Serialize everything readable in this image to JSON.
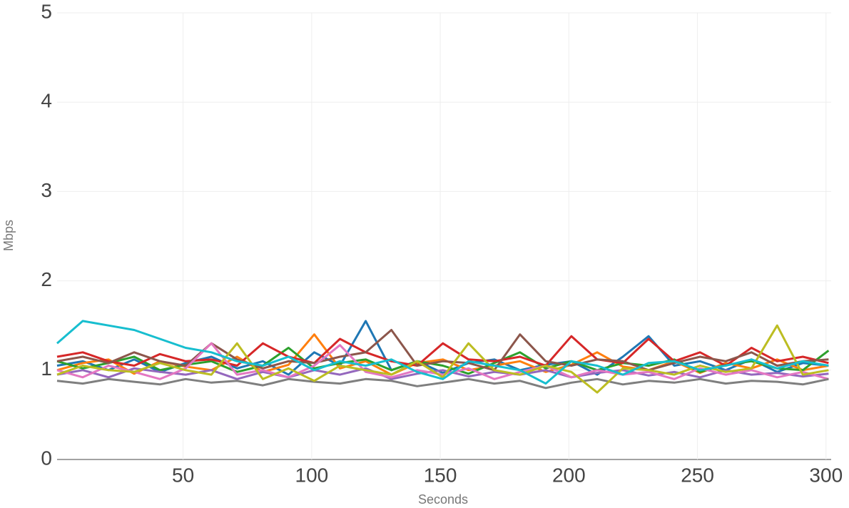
{
  "chart_data": {
    "type": "line",
    "x_label": "Seconds",
    "y_label": "Mbps",
    "x": [
      1,
      11,
      21,
      31,
      41,
      51,
      61,
      71,
      81,
      91,
      101,
      111,
      121,
      131,
      141,
      151,
      161,
      171,
      181,
      191,
      201,
      211,
      221,
      231,
      241,
      251,
      261,
      271,
      281,
      291,
      301
    ],
    "series": [
      {
        "color": "#1f77b4",
        "values": [
          1.05,
          1.1,
          1.0,
          1.12,
          0.98,
          1.08,
          1.15,
          1.02,
          1.1,
          0.95,
          1.2,
          1.05,
          1.55,
          1.0,
          1.1,
          0.97,
          1.08,
          1.12,
          1.0,
          1.06,
          1.1,
          0.95,
          1.15,
          1.38,
          1.05,
          1.1,
          1.0,
          1.12,
          0.98,
          1.08,
          1.05
        ]
      },
      {
        "color": "#ff7f0e",
        "values": [
          1.0,
          1.08,
          1.12,
          0.96,
          1.1,
          1.04,
          1.0,
          1.15,
          0.98,
          1.06,
          1.4,
          1.02,
          1.1,
          0.95,
          1.08,
          1.12,
          1.0,
          1.05,
          1.1,
          0.98,
          1.06,
          1.2,
          1.04,
          1.0,
          1.1,
          0.97,
          1.08,
          1.02,
          1.12,
          1.0,
          1.05
        ]
      },
      {
        "color": "#2ca02c",
        "values": [
          1.1,
          1.02,
          1.08,
          1.15,
          1.0,
          1.06,
          1.1,
          0.98,
          1.05,
          1.25,
          1.02,
          1.08,
          1.12,
          1.0,
          1.1,
          1.05,
          0.96,
          1.08,
          1.2,
          1.02,
          1.1,
          1.0,
          1.08,
          1.05,
          1.12,
          0.98,
          1.06,
          1.1,
          1.02,
          1.0,
          1.22
        ]
      },
      {
        "color": "#d62728",
        "values": [
          1.15,
          1.2,
          1.1,
          1.05,
          1.18,
          1.1,
          1.12,
          1.05,
          1.3,
          1.15,
          1.08,
          1.35,
          1.2,
          1.1,
          1.05,
          1.3,
          1.12,
          1.1,
          1.15,
          1.05,
          1.38,
          1.12,
          1.08,
          1.35,
          1.1,
          1.2,
          1.05,
          1.25,
          1.1,
          1.15,
          1.08
        ]
      },
      {
        "color": "#9467bd",
        "values": [
          0.95,
          1.0,
          0.92,
          1.02,
          0.98,
          0.95,
          1.0,
          0.9,
          0.98,
          0.92,
          1.0,
          0.95,
          1.02,
          0.9,
          0.96,
          1.0,
          0.93,
          0.98,
          0.95,
          1.0,
          0.92,
          0.97,
          1.0,
          0.94,
          0.98,
          0.92,
          1.0,
          0.95,
          0.97,
          0.93,
          0.96
        ]
      },
      {
        "color": "#8c564b",
        "values": [
          1.1,
          1.15,
          1.08,
          1.2,
          1.1,
          1.05,
          1.3,
          1.12,
          1.02,
          1.1,
          1.08,
          1.15,
          1.2,
          1.45,
          1.05,
          1.1,
          1.08,
          1.0,
          1.4,
          1.1,
          1.05,
          1.12,
          1.1,
          1.0,
          1.08,
          1.15,
          1.1,
          1.2,
          1.05,
          1.1,
          1.12
        ]
      },
      {
        "color": "#e377c2",
        "values": [
          1.0,
          0.92,
          1.05,
          0.98,
          0.9,
          1.02,
          1.3,
          0.95,
          1.0,
          0.92,
          1.05,
          1.28,
          0.98,
          0.92,
          1.0,
          0.95,
          1.02,
          0.9,
          0.98,
          1.05,
          0.92,
          1.0,
          0.95,
          0.98,
          0.9,
          1.02,
          0.95,
          1.0,
          0.92,
          0.98,
          0.9
        ]
      },
      {
        "color": "#7f7f7f",
        "values": [
          0.88,
          0.85,
          0.9,
          0.87,
          0.84,
          0.9,
          0.86,
          0.88,
          0.83,
          0.9,
          0.87,
          0.85,
          0.9,
          0.88,
          0.82,
          0.86,
          0.9,
          0.85,
          0.88,
          0.8,
          0.86,
          0.9,
          0.84,
          0.88,
          0.86,
          0.9,
          0.85,
          0.88,
          0.87,
          0.84,
          0.9
        ]
      },
      {
        "color": "#bcbd22",
        "values": [
          0.95,
          1.05,
          1.0,
          0.98,
          1.08,
          1.0,
          0.95,
          1.3,
          0.9,
          1.02,
          0.88,
          1.05,
          1.0,
          0.95,
          1.1,
          0.92,
          1.3,
          1.0,
          0.95,
          1.05,
          0.98,
          0.75,
          1.02,
          1.0,
          0.95,
          1.05,
          0.98,
          1.02,
          1.5,
          0.95,
          1.0
        ]
      },
      {
        "color": "#17becf",
        "values": [
          1.3,
          1.55,
          1.5,
          1.45,
          1.35,
          1.25,
          1.2,
          1.1,
          1.05,
          1.15,
          1.0,
          1.1,
          1.05,
          1.12,
          0.98,
          0.9,
          1.1,
          1.05,
          1.0,
          0.85,
          1.1,
          1.05,
          0.95,
          1.08,
          1.1,
          1.0,
          1.05,
          1.12,
          1.02,
          1.1,
          1.05
        ]
      }
    ],
    "xlim": [
      1,
      302
    ],
    "ylim": [
      0,
      5
    ],
    "xticks": [
      50,
      100,
      150,
      200,
      250,
      300
    ],
    "yticks": [
      0,
      1,
      2,
      3,
      4,
      5
    ],
    "grid": true
  }
}
